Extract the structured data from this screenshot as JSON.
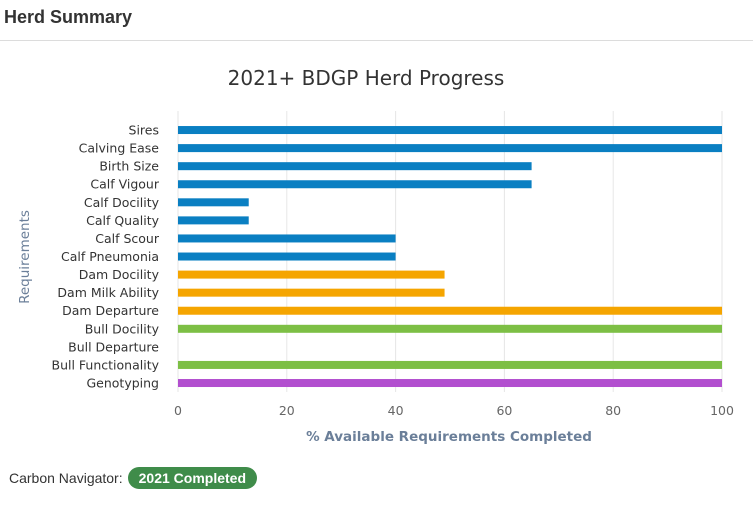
{
  "header": {
    "title": "Herd Summary"
  },
  "footer": {
    "label": "Carbon Navigator:",
    "badge": "2021 Completed",
    "badge_color": "#3f8c4a"
  },
  "chart_data": {
    "type": "bar",
    "orientation": "horizontal",
    "title": "2021+ BDGP Herd Progress",
    "xlabel": "% Available Requirements Completed",
    "ylabel": "Requirements",
    "xlim": [
      0,
      100
    ],
    "xticks": [
      0,
      20,
      40,
      60,
      80,
      100
    ],
    "grid": "vertical",
    "categories": [
      "Sires",
      "Calving Ease",
      "Birth Size",
      "Calf Vigour",
      "Calf Docility",
      "Calf Quality",
      "Calf Scour",
      "Calf Pneumonia",
      "Dam Docility",
      "Dam Milk Ability",
      "Dam Departure",
      "Bull Docility",
      "Bull Departure",
      "Bull Functionality",
      "Genotyping"
    ],
    "values": [
      100,
      100,
      65,
      65,
      13,
      13,
      40,
      40,
      49,
      49,
      100,
      100,
      0,
      100,
      100
    ],
    "colors": [
      "#0a7fc2",
      "#0a7fc2",
      "#0a7fc2",
      "#0a7fc2",
      "#0a7fc2",
      "#0a7fc2",
      "#0a7fc2",
      "#0a7fc2",
      "#f5a500",
      "#f5a500",
      "#f5a500",
      "#7dbf45",
      "#7dbf45",
      "#7dbf45",
      "#b24fcf"
    ]
  }
}
